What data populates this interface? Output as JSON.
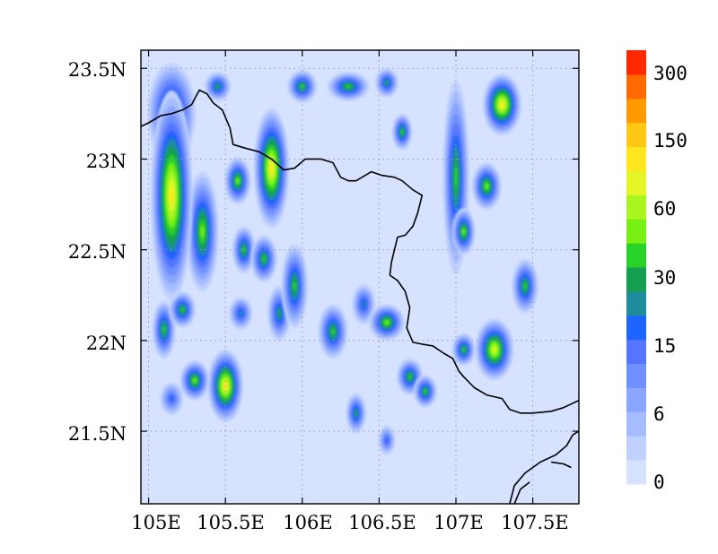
{
  "map": {
    "x_ticks": [
      "105E",
      "105.5E",
      "106E",
      "106.5E",
      "107E",
      "107.5E"
    ],
    "y_ticks": [
      "23.5N",
      "23N",
      "22.5N",
      "22N",
      "21.5N"
    ],
    "lon_range": [
      104.95,
      107.8
    ],
    "lat_range": [
      21.1,
      23.6
    ],
    "gridlines": "dotted"
  },
  "colorbar": {
    "colors": [
      "#d6e2ff",
      "#c0d0ff",
      "#a5bdff",
      "#8ba6ff",
      "#7090ff",
      "#5575ff",
      "#1e64ff",
      "#1e8c9a",
      "#14a050",
      "#28d228",
      "#78f014",
      "#aaf520",
      "#e6f528",
      "#ffe61e",
      "#ffc814",
      "#ff9a00",
      "#ff6a00",
      "#ff2800"
    ],
    "labels": [
      {
        "text": "0",
        "bin": 0
      },
      {
        "text": "6",
        "bin": 3
      },
      {
        "text": "15",
        "bin": 6
      },
      {
        "text": "30",
        "bin": 8
      },
      {
        "text": "60",
        "bin": 11
      },
      {
        "text": "150",
        "bin": 14
      },
      {
        "text": "300",
        "bin": 17
      }
    ]
  },
  "blobs": [
    {
      "lon": 105.15,
      "lat": 22.8,
      "rlon": 0.1,
      "rlat": 0.55,
      "level": 13
    },
    {
      "lon": 105.15,
      "lat": 23.25,
      "rlon": 0.12,
      "rlat": 0.25,
      "level": 10
    },
    {
      "lon": 105.35,
      "lat": 22.6,
      "rlon": 0.07,
      "rlat": 0.3,
      "level": 10
    },
    {
      "lon": 105.5,
      "lat": 21.75,
      "rlon": 0.08,
      "rlat": 0.17,
      "level": 13
    },
    {
      "lon": 105.3,
      "lat": 21.78,
      "rlon": 0.06,
      "rlat": 0.08,
      "level": 10
    },
    {
      "lon": 105.1,
      "lat": 22.06,
      "rlon": 0.04,
      "rlat": 0.13,
      "level": 9
    },
    {
      "lon": 105.22,
      "lat": 22.17,
      "rlon": 0.05,
      "rlat": 0.07,
      "level": 9
    },
    {
      "lon": 105.15,
      "lat": 21.68,
      "rlon": 0.04,
      "rlat": 0.06,
      "level": 6
    },
    {
      "lon": 105.8,
      "lat": 22.95,
      "rlon": 0.08,
      "rlat": 0.3,
      "level": 13
    },
    {
      "lon": 105.58,
      "lat": 22.88,
      "rlon": 0.05,
      "rlat": 0.1,
      "level": 10
    },
    {
      "lon": 105.62,
      "lat": 22.5,
      "rlon": 0.04,
      "rlat": 0.1,
      "level": 9
    },
    {
      "lon": 105.75,
      "lat": 22.45,
      "rlon": 0.05,
      "rlat": 0.1,
      "level": 9
    },
    {
      "lon": 105.95,
      "lat": 22.3,
      "rlon": 0.05,
      "rlat": 0.2,
      "level": 9
    },
    {
      "lon": 105.85,
      "lat": 22.15,
      "rlon": 0.04,
      "rlat": 0.12,
      "level": 8
    },
    {
      "lon": 106.2,
      "lat": 22.05,
      "rlon": 0.06,
      "rlat": 0.12,
      "level": 9
    },
    {
      "lon": 106.3,
      "lat": 23.4,
      "rlon": 0.1,
      "rlat": 0.05,
      "level": 9
    },
    {
      "lon": 106.0,
      "lat": 23.4,
      "rlon": 0.06,
      "rlat": 0.06,
      "level": 9
    },
    {
      "lon": 105.45,
      "lat": 23.4,
      "rlon": 0.05,
      "rlat": 0.05,
      "level": 8
    },
    {
      "lon": 106.55,
      "lat": 23.42,
      "rlon": 0.04,
      "rlat": 0.05,
      "level": 8
    },
    {
      "lon": 106.65,
      "lat": 23.15,
      "rlon": 0.03,
      "rlat": 0.07,
      "level": 9
    },
    {
      "lon": 106.55,
      "lat": 22.1,
      "rlon": 0.08,
      "rlat": 0.07,
      "level": 10
    },
    {
      "lon": 106.7,
      "lat": 21.8,
      "rlon": 0.05,
      "rlat": 0.07,
      "level": 9
    },
    {
      "lon": 106.8,
      "lat": 21.72,
      "rlon": 0.04,
      "rlat": 0.06,
      "level": 9
    },
    {
      "lon": 106.4,
      "lat": 22.2,
      "rlon": 0.04,
      "rlat": 0.08,
      "level": 7
    },
    {
      "lon": 106.35,
      "lat": 21.6,
      "rlon": 0.03,
      "rlat": 0.08,
      "level": 8
    },
    {
      "lon": 107.05,
      "lat": 22.6,
      "rlon": 0.04,
      "rlat": 0.1,
      "level": 10
    },
    {
      "lon": 107.2,
      "lat": 22.85,
      "rlon": 0.06,
      "rlat": 0.1,
      "level": 10
    },
    {
      "lon": 107.3,
      "lat": 23.3,
      "rlon": 0.09,
      "rlat": 0.14,
      "level": 13
    },
    {
      "lon": 107.25,
      "lat": 21.95,
      "rlon": 0.09,
      "rlat": 0.14,
      "level": 12
    },
    {
      "lon": 107.45,
      "lat": 22.3,
      "rlon": 0.05,
      "rlat": 0.12,
      "level": 9
    },
    {
      "lon": 107.05,
      "lat": 21.95,
      "rlon": 0.04,
      "rlat": 0.06,
      "level": 9
    },
    {
      "lon": 107.0,
      "lat": 22.9,
      "rlon": 0.05,
      "rlat": 0.5,
      "level": 9
    },
    {
      "lon": 105.6,
      "lat": 22.15,
      "rlon": 0.04,
      "rlat": 0.06,
      "level": 7
    },
    {
      "lon": 106.55,
      "lat": 21.45,
      "rlon": 0.02,
      "rlat": 0.05,
      "level": 6
    }
  ],
  "borders": [
    [
      [
        104.95,
        23.18
      ],
      [
        105.0,
        23.2
      ],
      [
        105.08,
        23.24
      ],
      [
        105.15,
        23.25
      ],
      [
        105.22,
        23.27
      ],
      [
        105.28,
        23.3
      ],
      [
        105.33,
        23.38
      ],
      [
        105.38,
        23.36
      ],
      [
        105.42,
        23.31
      ],
      [
        105.48,
        23.27
      ],
      [
        105.53,
        23.17
      ],
      [
        105.55,
        23.08
      ],
      [
        105.63,
        23.06
      ],
      [
        105.72,
        23.04
      ],
      [
        105.8,
        23.0
      ],
      [
        105.88,
        22.94
      ],
      [
        105.95,
        22.95
      ],
      [
        106.02,
        23.0
      ],
      [
        106.12,
        23.0
      ],
      [
        106.2,
        22.98
      ],
      [
        106.25,
        22.9
      ],
      [
        106.3,
        22.88
      ],
      [
        106.35,
        22.88
      ],
      [
        106.45,
        22.93
      ],
      [
        106.52,
        22.91
      ],
      [
        106.6,
        22.9
      ],
      [
        106.65,
        22.88
      ],
      [
        106.72,
        22.83
      ],
      [
        106.78,
        22.8
      ],
      [
        106.75,
        22.7
      ],
      [
        106.72,
        22.63
      ],
      [
        106.67,
        22.58
      ],
      [
        106.62,
        22.57
      ],
      [
        106.6,
        22.5
      ],
      [
        106.58,
        22.43
      ],
      [
        106.57,
        22.36
      ],
      [
        106.62,
        22.33
      ],
      [
        106.67,
        22.27
      ],
      [
        106.7,
        22.18
      ],
      [
        106.68,
        22.07
      ],
      [
        106.72,
        21.99
      ],
      [
        106.78,
        21.98
      ],
      [
        106.85,
        21.97
      ],
      [
        106.92,
        21.93
      ],
      [
        106.98,
        21.9
      ],
      [
        107.02,
        21.83
      ],
      [
        107.05,
        21.8
      ],
      [
        107.12,
        21.74
      ],
      [
        107.2,
        21.7
      ],
      [
        107.3,
        21.68
      ],
      [
        107.35,
        21.62
      ],
      [
        107.42,
        21.6
      ],
      [
        107.5,
        21.6
      ],
      [
        107.62,
        21.61
      ],
      [
        107.7,
        21.63
      ],
      [
        107.8,
        21.67
      ]
    ],
    [
      [
        107.35,
        21.1
      ],
      [
        107.38,
        21.2
      ],
      [
        107.45,
        21.27
      ],
      [
        107.55,
        21.33
      ],
      [
        107.65,
        21.37
      ],
      [
        107.72,
        21.42
      ],
      [
        107.76,
        21.48
      ],
      [
        107.8,
        21.5
      ]
    ],
    [
      [
        107.38,
        21.1
      ],
      [
        107.42,
        21.18
      ],
      [
        107.48,
        21.22
      ]
    ],
    [
      [
        107.62,
        21.33
      ],
      [
        107.7,
        21.32
      ],
      [
        107.75,
        21.3
      ]
    ]
  ]
}
